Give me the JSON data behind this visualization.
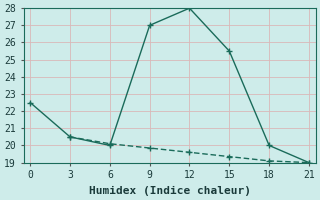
{
  "line1_x": [
    0,
    3,
    6,
    9,
    12,
    15,
    18,
    21
  ],
  "line1_y": [
    22.5,
    20.5,
    20.0,
    27.0,
    28.0,
    25.5,
    20.0,
    19.0
  ],
  "line2_x": [
    3,
    6,
    9,
    12,
    15,
    18,
    21
  ],
  "line2_y": [
    20.5,
    20.1,
    19.85,
    19.6,
    19.35,
    19.1,
    19.0
  ],
  "line_color": "#1a6b5a",
  "background_color": "#ceecea",
  "grid_color": "#d9b8b8",
  "xlabel": "Humidex (Indice chaleur)",
  "xlim": [
    -0.5,
    21.5
  ],
  "ylim": [
    19,
    28
  ],
  "xticks": [
    0,
    3,
    6,
    9,
    12,
    15,
    18,
    21
  ],
  "yticks": [
    19,
    20,
    21,
    22,
    23,
    24,
    25,
    26,
    27,
    28
  ],
  "marker": "+",
  "marker_size": 5,
  "line_width": 1.0,
  "xlabel_fontsize": 8,
  "tick_fontsize": 7
}
